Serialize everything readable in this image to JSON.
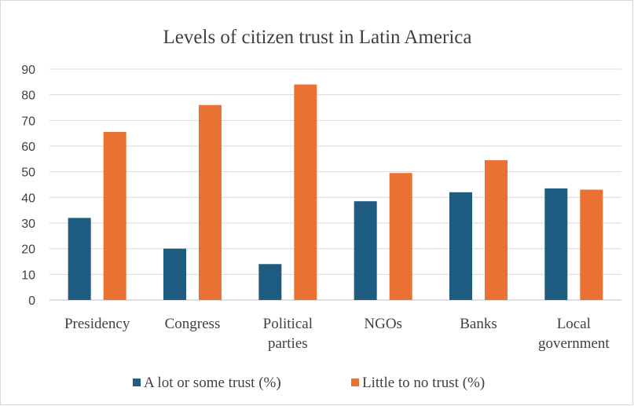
{
  "chart_data": {
    "type": "bar",
    "title": "Levels of citizen trust in Latin America",
    "xlabel": "",
    "ylabel": "",
    "categories": [
      [
        "Presidency"
      ],
      [
        "Congress"
      ],
      [
        "Political",
        "parties"
      ],
      [
        "NGOs"
      ],
      [
        "Banks"
      ],
      [
        "Local",
        "government"
      ]
    ],
    "series": [
      {
        "name": "A lot or some trust (%)",
        "color": "#1f5c82",
        "values": [
          32,
          20,
          14,
          38.5,
          42,
          43.5
        ]
      },
      {
        "name": "Little to no trust (%)",
        "color": "#e97132",
        "values": [
          65.5,
          76,
          84,
          49.5,
          54.5,
          43
        ]
      }
    ],
    "ylim": [
      0,
      90
    ],
    "yticks": [
      0,
      10,
      20,
      30,
      40,
      50,
      60,
      70,
      80,
      90
    ],
    "grid": true,
    "legend_position": "bottom"
  }
}
